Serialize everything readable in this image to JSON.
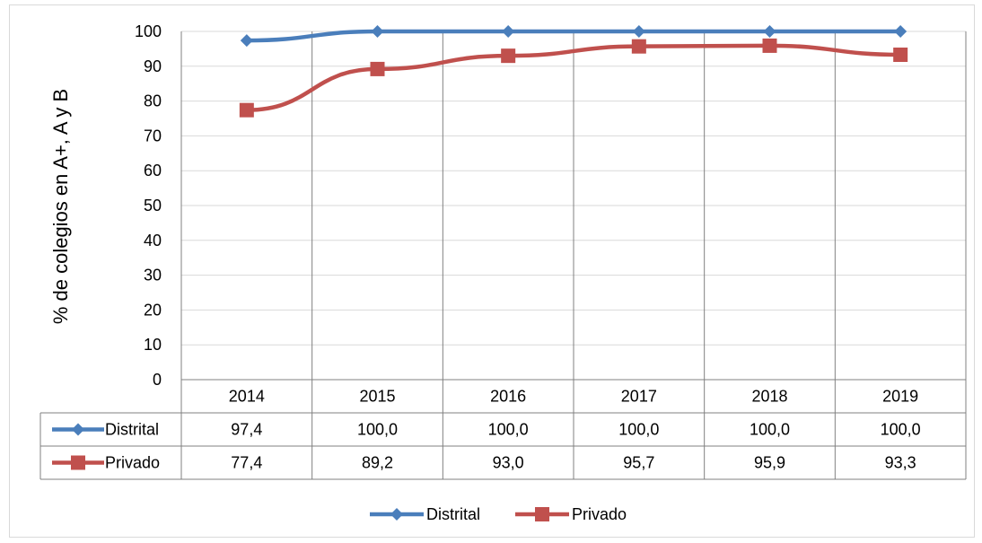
{
  "chart_data": {
    "type": "line",
    "categories": [
      "2014",
      "2015",
      "2016",
      "2017",
      "2018",
      "2019"
    ],
    "series": [
      {
        "name": "Distrital",
        "values": [
          97.4,
          100.0,
          100.0,
          100.0,
          100.0,
          100.0
        ],
        "display_values": [
          "97,4",
          "100,0",
          "100,0",
          "100,0",
          "100,0",
          "100,0"
        ],
        "color": "#4a7ebb",
        "marker": "diamond"
      },
      {
        "name": "Privado",
        "values": [
          77.4,
          89.2,
          93.0,
          95.7,
          95.9,
          93.3
        ],
        "display_values": [
          "77,4",
          "89,2",
          "93,0",
          "95,7",
          "95,9",
          "93,3"
        ],
        "color": "#c0504d",
        "marker": "square"
      }
    ],
    "ylabel": "% de colegios en A+, A y B",
    "xlabel": "",
    "ylim": [
      0,
      100
    ],
    "yticks": [
      0,
      10,
      20,
      30,
      40,
      50,
      60,
      70,
      80,
      90,
      100
    ],
    "grid": {
      "horizontal": true,
      "vertical": true
    },
    "legend": "bottom",
    "data_table": true
  }
}
